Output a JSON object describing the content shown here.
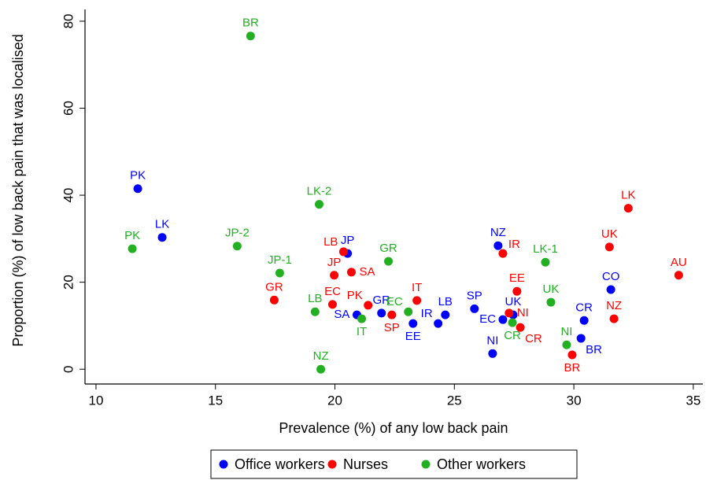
{
  "chart_data": {
    "type": "scatter",
    "xlabel": "Prevalence (%) of any low back pain",
    "ylabel": "Proportion (%) of low back pain that was localised",
    "xlim": [
      9.54,
      35.4
    ],
    "ylim": [
      -3.4,
      82.7
    ],
    "xticks": [
      10,
      15,
      20,
      25,
      30,
      35
    ],
    "yticks": [
      0,
      20,
      40,
      60,
      80
    ],
    "legend": "bottom",
    "series": [
      {
        "name": "Office workers",
        "color": "#0000ff",
        "labels": [
          "PK",
          "LK",
          "JP",
          "SA",
          "GR",
          "EE",
          "IR",
          "LB",
          "SP",
          "NZ",
          "EC",
          "UK",
          "NI",
          "CR",
          "BR",
          "CO"
        ],
        "x": [
          11.75,
          12.77,
          20.53,
          20.92,
          21.95,
          23.27,
          24.32,
          24.62,
          25.84,
          26.83,
          27.03,
          27.46,
          26.6,
          30.43,
          30.3,
          31.55
        ],
        "values": [
          41.5,
          30.3,
          26.6,
          12.5,
          12.9,
          10.5,
          10.5,
          12.5,
          13.9,
          28.4,
          11.4,
          12.5,
          3.6,
          11.2,
          7.1,
          18.3
        ]
      },
      {
        "name": "Nurses",
        "color": "#ff0000",
        "labels": [
          "GR",
          "LB",
          "JP",
          "SA",
          "EC",
          "PK",
          "SP",
          "IT",
          "IR",
          "EE",
          "NI",
          "CR",
          "BR",
          "UK",
          "LK",
          "NZ",
          "AU"
        ],
        "x": [
          17.46,
          20.36,
          19.97,
          20.69,
          19.9,
          21.39,
          22.38,
          23.43,
          27.03,
          27.62,
          27.29,
          27.76,
          29.93,
          31.49,
          32.28,
          31.68,
          34.39
        ],
        "values": [
          15.9,
          27.0,
          21.6,
          22.3,
          14.9,
          14.7,
          12.5,
          15.8,
          26.6,
          17.9,
          12.9,
          9.6,
          3.3,
          28.1,
          37.0,
          11.6,
          21.6
        ]
      },
      {
        "name": "Other workers",
        "color": "#22b022",
        "labels": [
          "BR",
          "LK-2",
          "PK",
          "JP-2",
          "JP-1",
          "GR",
          "LB",
          "IT",
          "EC",
          "NZ",
          "LK-1",
          "UK",
          "CR",
          "NI"
        ],
        "x": [
          16.47,
          19.34,
          11.52,
          15.91,
          17.69,
          22.24,
          19.17,
          21.12,
          23.07,
          19.41,
          28.81,
          29.04,
          27.43,
          29.7
        ],
        "values": [
          76.6,
          37.9,
          27.7,
          28.3,
          22.1,
          24.8,
          13.2,
          11.6,
          13.2,
          0,
          24.6,
          15.4,
          10.7,
          5.6
        ]
      }
    ]
  }
}
